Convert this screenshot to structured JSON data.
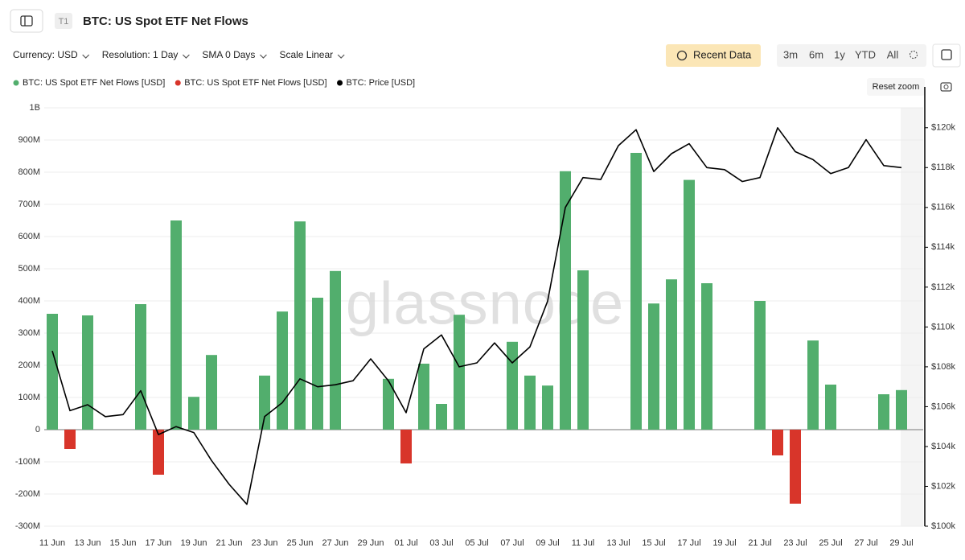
{
  "toolbar": {
    "badge": "T1",
    "title": "BTC: US Spot ETF Net Flows",
    "controls": [
      "Currency: USD",
      "Resolution: 1 Day",
      "SMA 0 Days",
      "Scale Linear"
    ],
    "recent": "Recent Data",
    "ranges": [
      "3m",
      "6m",
      "1y",
      "YTD",
      "All"
    ],
    "reset_zoom": "Reset zoom"
  },
  "chart_data": {
    "type": "bar",
    "watermark": "glassnode",
    "categories": [
      "11 Jun",
      null,
      "13 Jun",
      null,
      "15 Jun",
      null,
      "17 Jun",
      null,
      "19 Jun",
      null,
      "21 Jun",
      null,
      "23 Jun",
      null,
      "25 Jun",
      null,
      "27 Jun",
      null,
      "29 Jun",
      null,
      "01 Jul",
      null,
      "03 Jul",
      null,
      "05 Jul",
      null,
      "07 Jul",
      null,
      "09 Jul",
      null,
      "11 Jul",
      null,
      "13 Jul",
      null,
      "15 Jul",
      null,
      "17 Jul",
      null,
      "19 Jul",
      null,
      "21 Jul",
      null,
      "23 Jul",
      null,
      "25 Jul",
      null,
      "27 Jul",
      null,
      "29 Jul"
    ],
    "series": [
      {
        "name": "BTC: US Spot ETF Net Flows [USD]",
        "type": "bar",
        "color": "#52ae6d",
        "values": [
          360000000,
          null,
          355000000,
          null,
          null,
          390000000,
          null,
          650000000,
          102000000,
          232000000,
          null,
          null,
          168000000,
          367000000,
          647000000,
          410000000,
          493000000,
          null,
          null,
          158000000,
          null,
          205000000,
          80000000,
          357000000,
          null,
          null,
          273000000,
          168000000,
          137000000,
          803000000,
          495000000,
          null,
          null,
          860000000,
          392000000,
          467000000,
          776000000,
          455000000,
          null,
          null,
          400000000,
          null,
          null,
          277000000,
          140000000,
          null,
          null,
          110000000,
          123000000
        ]
      },
      {
        "name": "BTC: US Spot ETF Net Flows [USD]",
        "type": "bar",
        "color": "#d8352a",
        "values": [
          null,
          -60000000,
          null,
          null,
          null,
          null,
          -140000000,
          null,
          null,
          null,
          null,
          null,
          null,
          null,
          null,
          null,
          null,
          null,
          null,
          null,
          -105000000,
          null,
          null,
          null,
          null,
          null,
          null,
          null,
          null,
          null,
          null,
          null,
          null,
          null,
          null,
          null,
          null,
          null,
          null,
          null,
          null,
          -80000000,
          -230000000,
          null,
          null,
          null,
          null,
          null,
          null
        ]
      },
      {
        "name": "BTC: Price [USD]",
        "type": "line",
        "axis": "y2",
        "color": "#000000",
        "values": [
          108800,
          105800,
          106100,
          105500,
          105600,
          106800,
          104600,
          105000,
          104700,
          103300,
          102100,
          101100,
          105500,
          106200,
          107400,
          107000,
          107100,
          107300,
          108400,
          107300,
          105700,
          108900,
          109600,
          108000,
          108200,
          109200,
          108200,
          109000,
          111300,
          116000,
          117500,
          117400,
          119100,
          119900,
          117800,
          118700,
          119200,
          118000,
          117900,
          117300,
          117500,
          120000,
          118800,
          118400,
          117700,
          118000,
          119400,
          118100,
          118000
        ]
      }
    ],
    "ylim": [
      -300000000,
      1000000000
    ],
    "yticks": [
      {
        "value": -300000000,
        "label": "-300M"
      },
      {
        "value": -200000000,
        "label": "-200M"
      },
      {
        "value": -100000000,
        "label": "-100M"
      },
      0,
      {
        "value": 100000000,
        "label": "100M"
      },
      {
        "value": 200000000,
        "label": "200M"
      },
      {
        "value": 300000000,
        "label": "300M"
      },
      {
        "value": 400000000,
        "label": "400M"
      },
      {
        "value": 500000000,
        "label": "500M"
      },
      {
        "value": 600000000,
        "label": "600M"
      },
      {
        "value": 700000000,
        "label": "700M"
      },
      {
        "value": 800000000,
        "label": "800M"
      },
      {
        "value": 900000000,
        "label": "900M"
      },
      {
        "value": 1000000000,
        "label": "1B"
      }
    ],
    "y2lim": [
      100000,
      121000
    ],
    "y2ticks": [
      {
        "value": 100000,
        "label": "$100k"
      },
      {
        "value": 102000,
        "label": "$102k"
      },
      {
        "value": 104000,
        "label": "$104k"
      },
      {
        "value": 106000,
        "label": "$106k"
      },
      {
        "value": 108000,
        "label": "$108k"
      },
      {
        "value": 110000,
        "label": "$110k"
      },
      {
        "value": 112000,
        "label": "$112k"
      },
      {
        "value": 114000,
        "label": "$114k"
      },
      {
        "value": 116000,
        "label": "$116k"
      },
      {
        "value": 118000,
        "label": "$118k"
      },
      {
        "value": 120000,
        "label": "$120k"
      }
    ],
    "grid": true
  }
}
